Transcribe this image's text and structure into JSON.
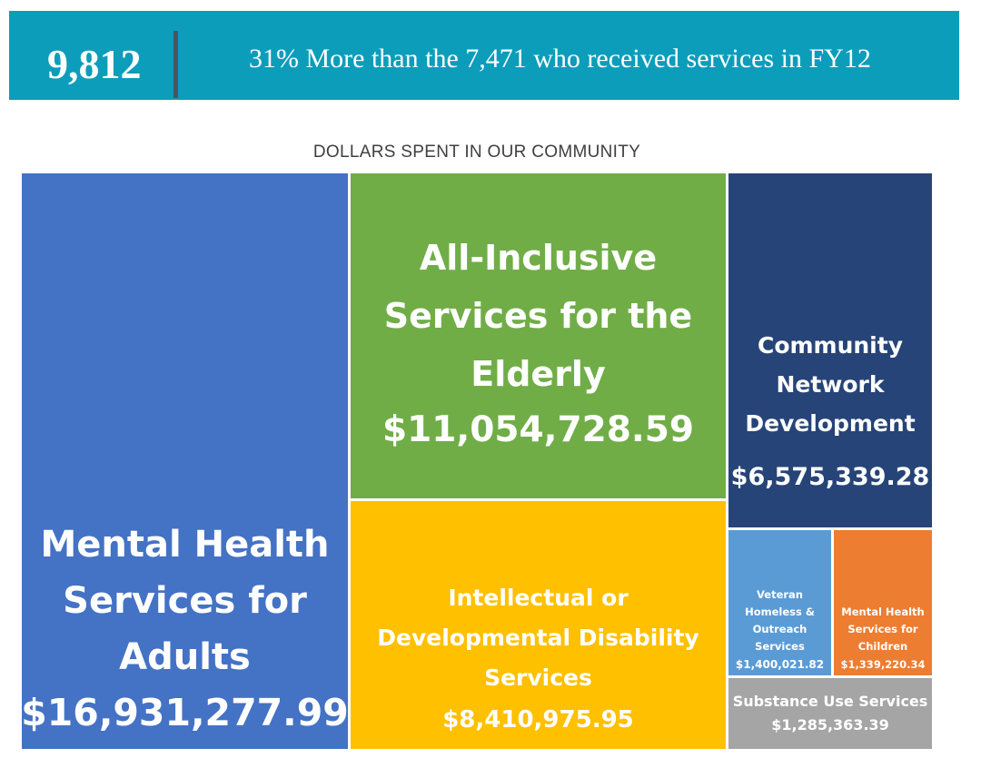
{
  "banner": {
    "number": "9,812",
    "text": "31% More than the 7,471 who received services in FY12",
    "color": "#0c9dbb"
  },
  "chart_data": {
    "type": "treemap",
    "title": "DOLLARS SPENT IN OUR COMMUNITY",
    "items": [
      {
        "key": "adults",
        "label": "Mental Health\nServices for\nAdults",
        "value": 16931277.99,
        "value_label": "$16,931,277.99",
        "color": "#4472c4"
      },
      {
        "key": "elderly",
        "label": "All-Inclusive\nServices for the\nElderly",
        "value": 11054728.59,
        "value_label": "$11,054,728.59",
        "color": "#70ad47"
      },
      {
        "key": "idd",
        "label": "Intellectual or\nDevelopmental Disability\nServices",
        "value": 8410975.95,
        "value_label": "$8,410,975.95",
        "color": "#ffc000"
      },
      {
        "key": "cnd",
        "label": "Community\nNetwork\nDevelopment",
        "value": 6575339.28,
        "value_label": "$6,575,339.28",
        "color": "#264478"
      },
      {
        "key": "vet",
        "label": "Veteran\nHomeless &\nOutreach\nServices",
        "value": 1400021.82,
        "value_label": "$1,400,021.82",
        "color": "#5b9bd5"
      },
      {
        "key": "chi",
        "label": "Mental Health\nServices for\nChildren",
        "value": 1339220.34,
        "value_label": "$1,339,220.34",
        "color": "#ed7d31"
      },
      {
        "key": "sub",
        "label": "Substance Use Services",
        "value": 1285363.39,
        "value_label": "$1,285,363.39",
        "color": "#a5a5a5"
      }
    ]
  }
}
